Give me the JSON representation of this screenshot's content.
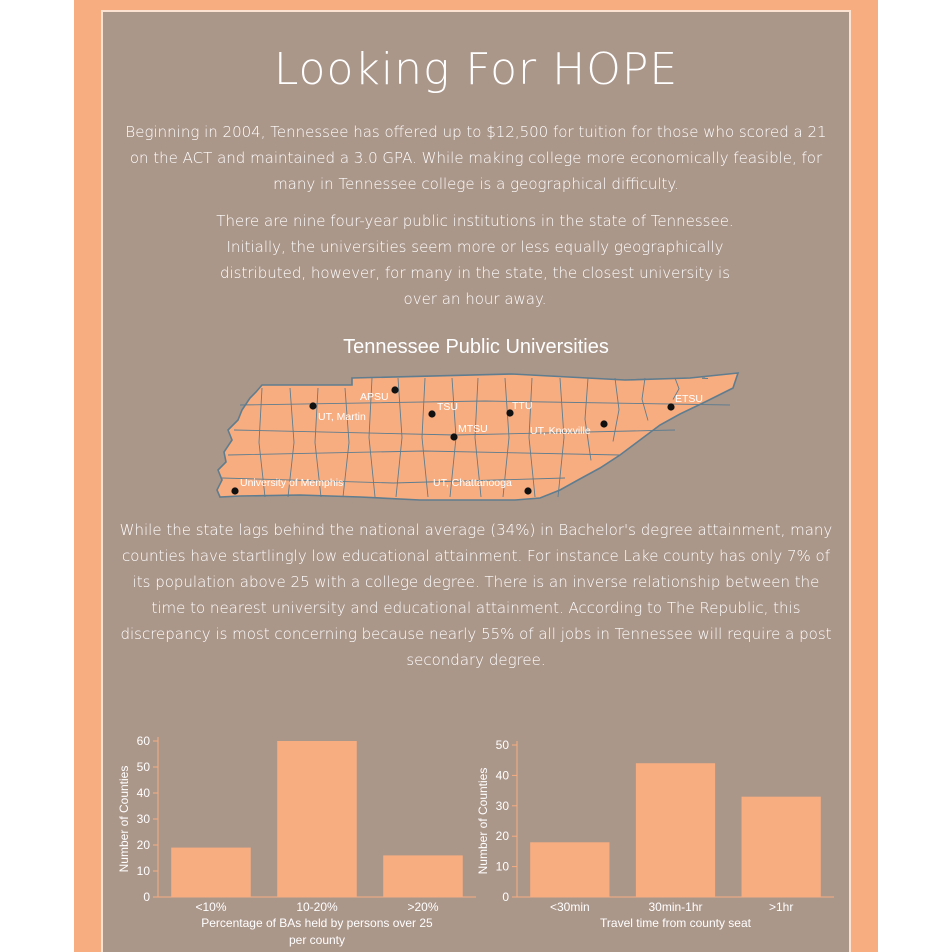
{
  "title": "Looking For HOPE",
  "intro1": "Beginning in 2004, Tennessee has offered up to $12,500 for tuition for those who scored a 21 on the ACT and maintained a 3.0 GPA. While making college more economically feasible, for many in Tennessee college is a geographical difficulty.",
  "intro2": "There are nine four-year public institutions in the state of Tennessee. Initially, the universities seem more or less equally geographically distributed, however, for many in the state, the closest  university is over an hour away.",
  "body": "While the state lags behind the national average (34%) in Bachelor's degree attainment, many counties have startlingly low educational attainment. For instance Lake county has only 7% of its population above 25 with a college degree. There is an inverse relationship between the time to nearest university and educational attainment. According to The Republic, this discrepancy is most concerning because nearly 55% of all jobs in Tennessee will require a post secondary degree.",
  "map": {
    "title": "Tennessee Public Universities",
    "universities": [
      "APSU",
      "UT, Martin",
      "TSU",
      "TTU",
      "ETSU",
      "MTSU",
      "UT, Knoxville",
      "University of Memphis",
      "UT, Chattanooga"
    ]
  },
  "colors": {
    "frame": "#f7ad80",
    "panel": "#ab968a",
    "bar": "#f7ad80",
    "county_border": "#5f7d8e",
    "text": "#ffffff"
  },
  "chart_data": [
    {
      "type": "bar",
      "categories": [
        "<10%",
        "10-20%",
        ">20%"
      ],
      "values": [
        19,
        60,
        16
      ],
      "xlabel": "Percentage of BAs held by persons over 25 per county",
      "ylabel": "Number of Counties",
      "ylim": [
        0,
        60
      ],
      "yticks": [
        0,
        10,
        20,
        30,
        40,
        50,
        60
      ],
      "grid": false
    },
    {
      "type": "bar",
      "categories": [
        "<30min",
        "30min-1hr",
        ">1hr"
      ],
      "values": [
        18,
        44,
        33
      ],
      "xlabel": "Travel time from county seat",
      "ylabel": "Number of Counties",
      "ylim": [
        0,
        50
      ],
      "yticks": [
        0,
        10,
        20,
        30,
        40,
        50
      ],
      "grid": false
    }
  ]
}
